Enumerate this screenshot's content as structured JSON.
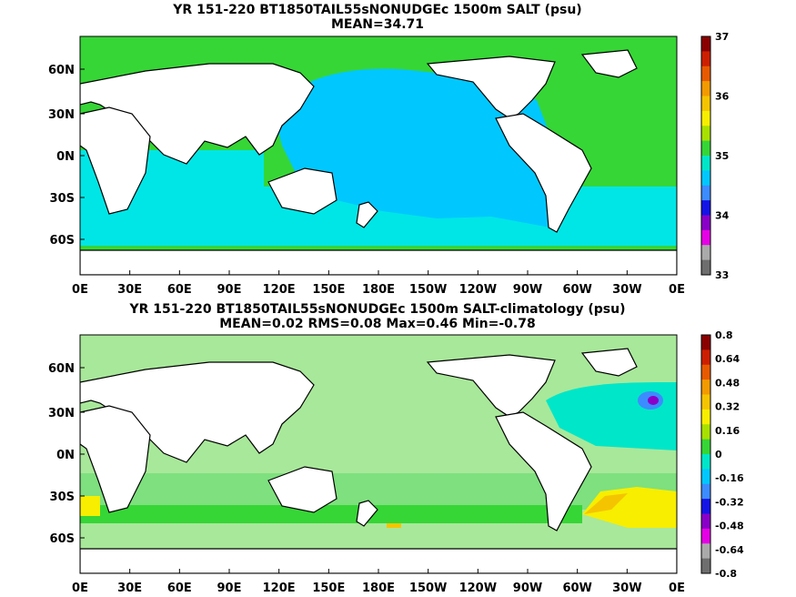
{
  "panels": [
    {
      "title": "YR 151-220 BT1850TAIL55sNONUDGEc 1500m SALT (psu)",
      "stats": "MEAN=34.71",
      "xticks": [
        "0E",
        "30E",
        "60E",
        "90E",
        "120E",
        "150E",
        "180E",
        "150W",
        "120W",
        "90W",
        "60W",
        "30W",
        "0E"
      ],
      "yticks": [
        "60N",
        "30N",
        "0N",
        "30S",
        "60S"
      ],
      "colorbar": {
        "labels": [
          "37",
          "36",
          "35",
          "34",
          "33"
        ],
        "colors": [
          "#8b0000",
          "#cc1f00",
          "#e85a00",
          "#f29a00",
          "#f5c400",
          "#f7ee00",
          "#a8e000",
          "#36d636",
          "#00e6c8",
          "#00c8ff",
          "#3c8cff",
          "#1414e6",
          "#8a00c8",
          "#e600e6",
          "#aaaaaa",
          "#6e6e6e"
        ]
      },
      "field": {
        "ocean_color": "#00c8ff",
        "atlantic_color": "#00e6c8",
        "southern_color": "#00e6e6"
      }
    },
    {
      "title": "YR 151-220 BT1850TAIL55sNONUDGEc 1500m SALT-climatology (psu)",
      "stats": "MEAN=0.02   RMS=0.08   Max=0.46   Min=-0.78",
      "xticks": [
        "0E",
        "30E",
        "60E",
        "90E",
        "120E",
        "150E",
        "180E",
        "150W",
        "120W",
        "90W",
        "60W",
        "30W",
        "0E"
      ],
      "yticks": [
        "60N",
        "30N",
        "0N",
        "30S",
        "60S"
      ],
      "colorbar": {
        "labels": [
          "0.8",
          "0.64",
          "0.48",
          "0.32",
          "0.16",
          "0",
          "-0.16",
          "-0.32",
          "-0.48",
          "-0.64",
          "-0.8"
        ],
        "colors": [
          "#8b0000",
          "#cc1f00",
          "#e85a00",
          "#f29a00",
          "#f5c400",
          "#f7ee00",
          "#a8e000",
          "#36d636",
          "#00e6c8",
          "#00c8ff",
          "#3c8cff",
          "#1414e6",
          "#8a00c8",
          "#e600e6",
          "#aaaaaa",
          "#6e6e6e"
        ]
      },
      "field": {
        "ocean_color": "#a8e89a",
        "anomaly_positive": "#f7ee00",
        "anomaly_negative": "#1414e6"
      }
    }
  ]
}
